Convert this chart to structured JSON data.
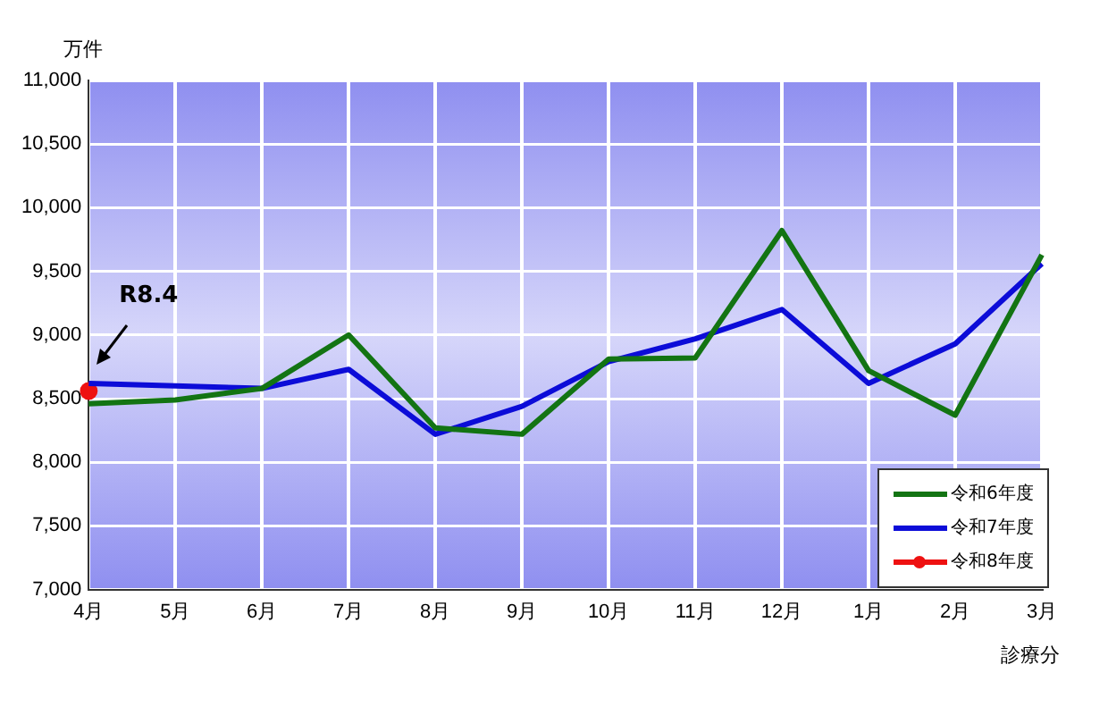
{
  "chart_data": {
    "type": "line",
    "ylabel": "万件",
    "xlabel": "診療分",
    "categories": [
      "4月",
      "5月",
      "6月",
      "7月",
      "8月",
      "9月",
      "10月",
      "11月",
      "12月",
      "1月",
      "2月",
      "3月"
    ],
    "series": [
      {
        "name": "令和6年度",
        "color": "#137413",
        "marker": "none",
        "values": [
          8460,
          8490,
          8580,
          9000,
          8270,
          8220,
          8810,
          8820,
          9820,
          8720,
          8370,
          9630
        ]
      },
      {
        "name": "令和7年度",
        "color": "#0c0cd8",
        "marker": "none",
        "values": [
          8620,
          8600,
          8580,
          8730,
          8220,
          8440,
          8790,
          8970,
          9200,
          8620,
          8930,
          9560
        ]
      },
      {
        "name": "令和8年度",
        "color": "#ee1111",
        "marker": "circle",
        "values": [
          8560,
          null,
          null,
          null,
          null,
          null,
          null,
          null,
          null,
          null,
          null,
          null
        ]
      }
    ],
    "ylim": [
      7000,
      11000
    ],
    "yticks": [
      {
        "value": 7000,
        "label": "7,000"
      },
      {
        "value": 7500,
        "label": "7,500"
      },
      {
        "value": 8000,
        "label": "8,000"
      },
      {
        "value": 8500,
        "label": "8,500"
      },
      {
        "value": 9000,
        "label": "9,000"
      },
      {
        "value": 9500,
        "label": "9,500"
      },
      {
        "value": 10000,
        "label": "10,000"
      },
      {
        "value": 10500,
        "label": "10,500"
      },
      {
        "value": 11000,
        "label": "11,000"
      }
    ],
    "grid": true,
    "legend": "bottom right",
    "line_style": "solid",
    "annotations": [
      "R8.4"
    ]
  }
}
